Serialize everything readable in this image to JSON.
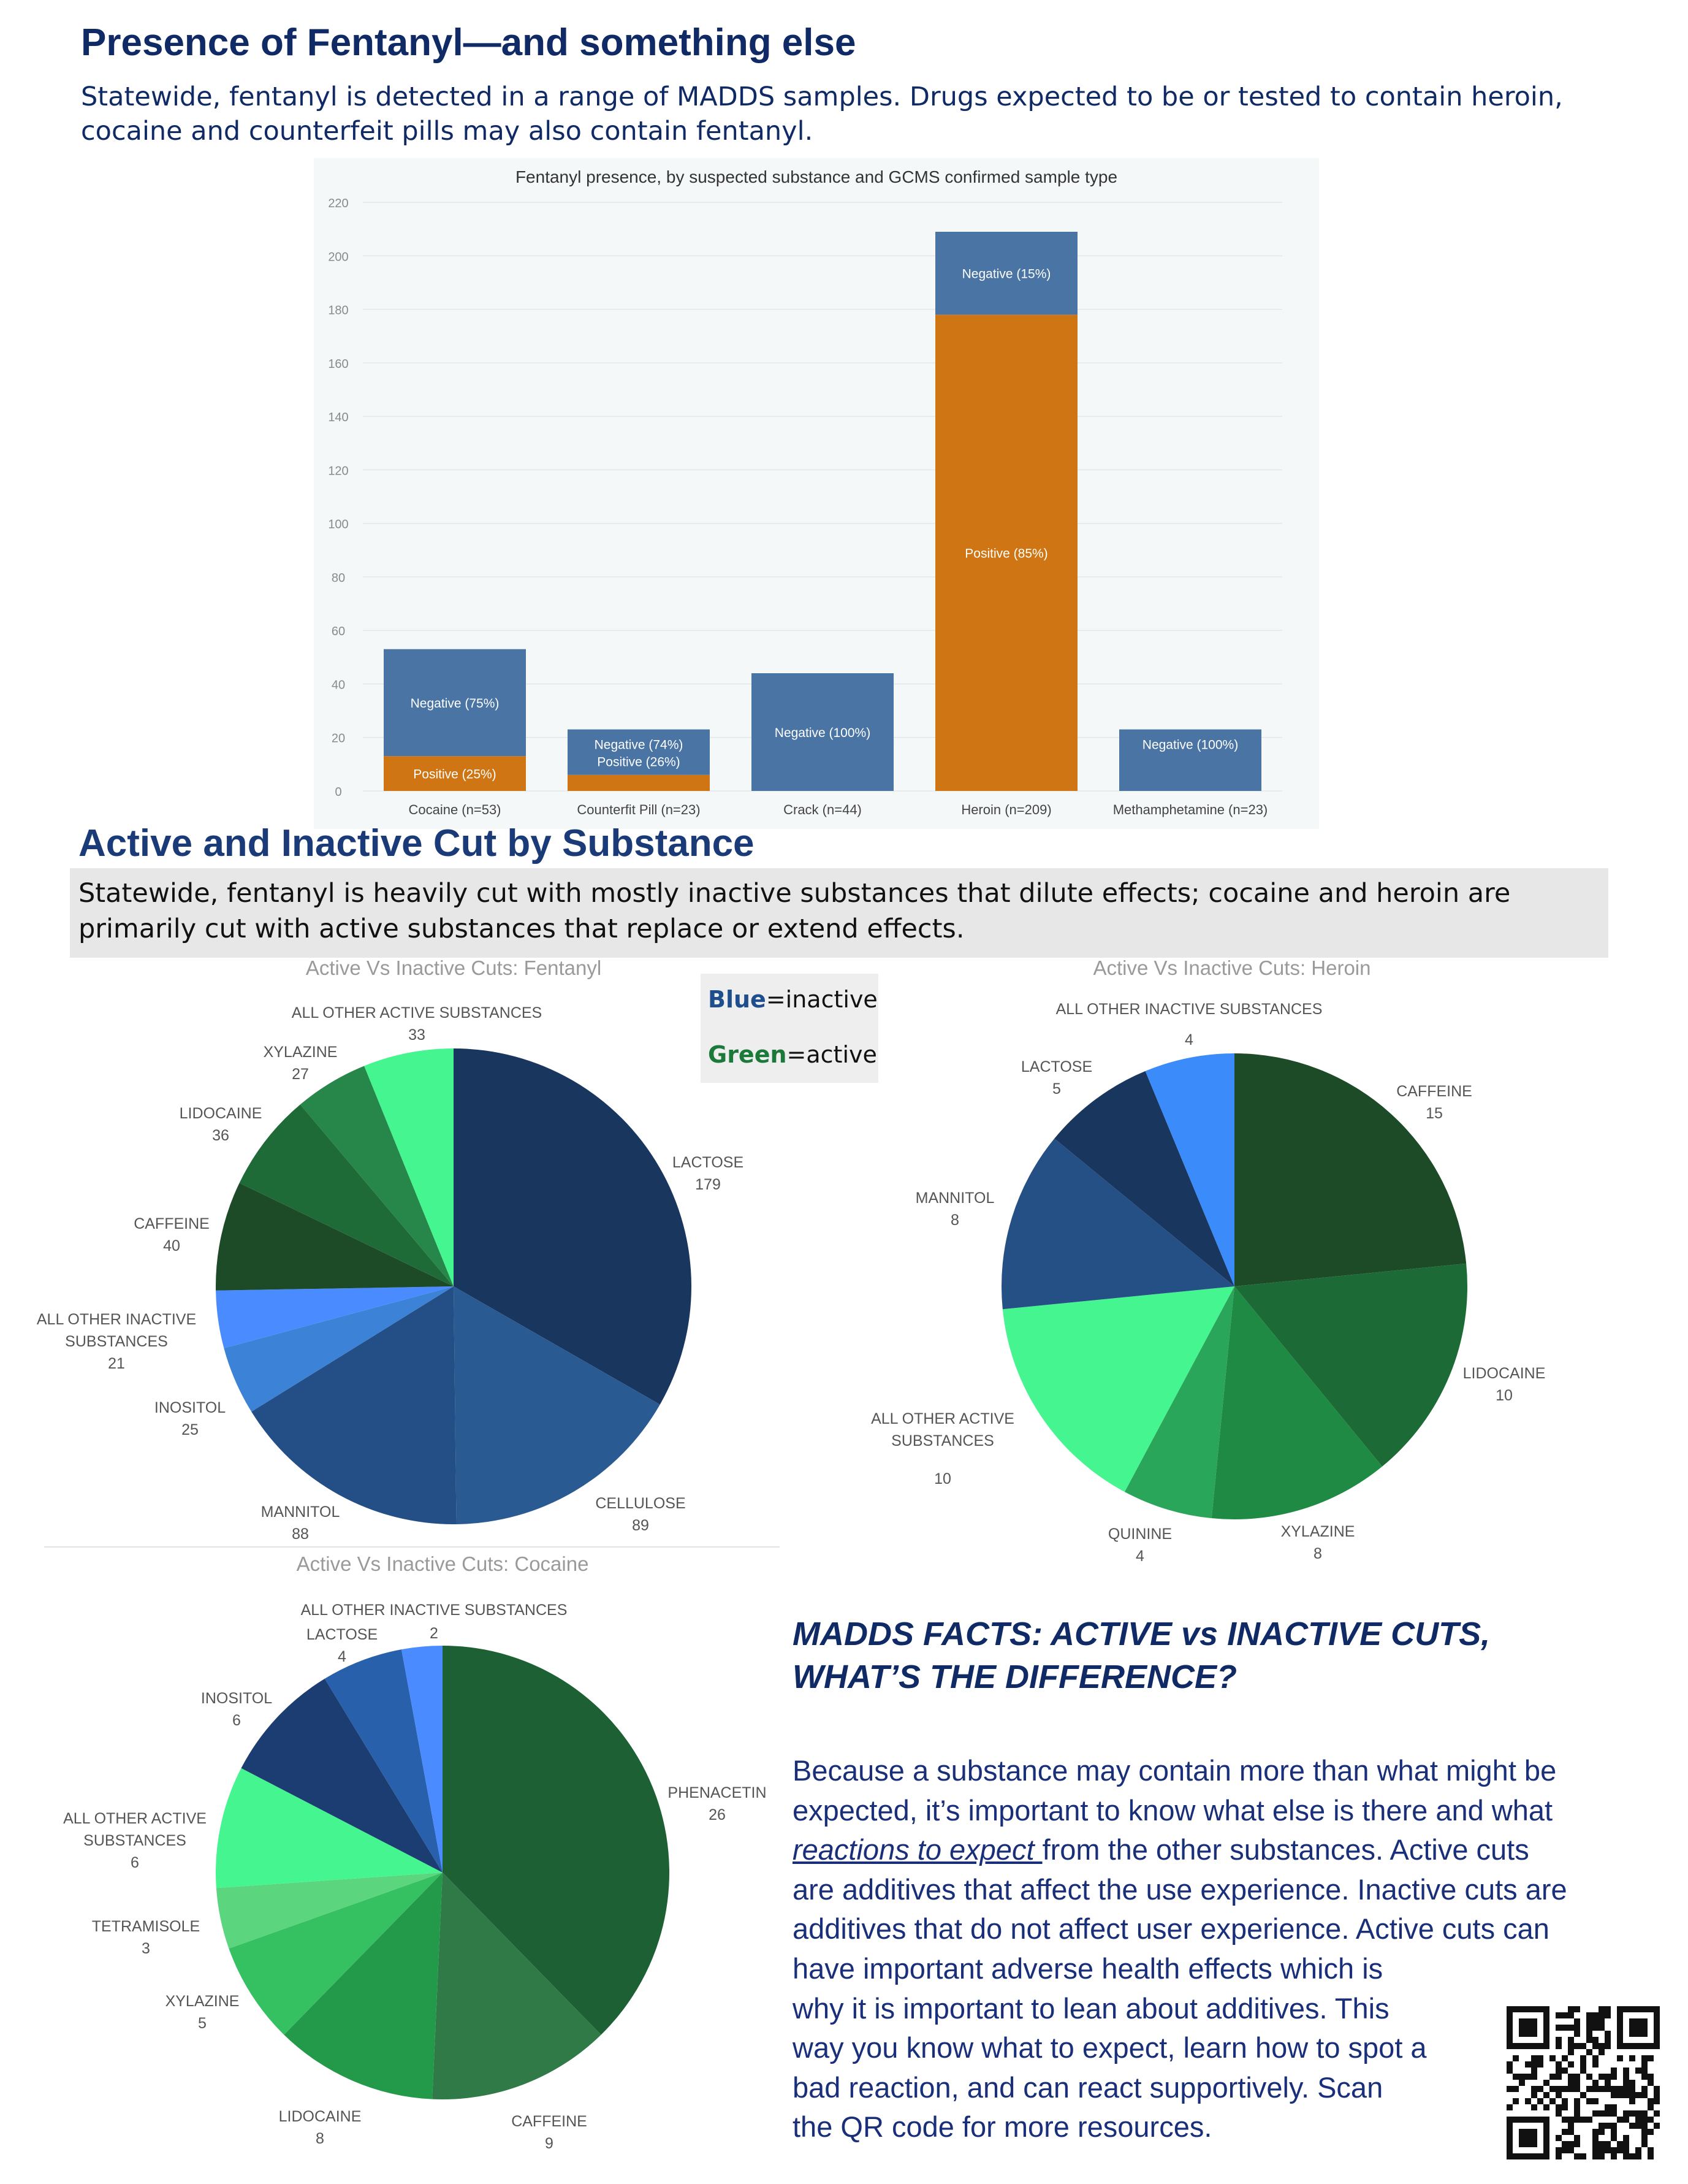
{
  "header": {
    "title": "Presence of Fentanyl—and something else",
    "intro": "Statewide, fentanyl is detected in a range of MADDS samples. Drugs expected to be or tested to contain heroin, cocaine and counterfeit pills may also contain fentanyl."
  },
  "section2": {
    "title": "Active and Inactive Cut by Substance",
    "intro": "Statewide, fentanyl is heavily cut with mostly inactive substances that dilute effects; cocaine and heroin are primarily cut with active  substances that replace or extend effects."
  },
  "legend": {
    "blue_word": "Blue",
    "blue_rest": "=inactive",
    "green_word": "Green",
    "green_rest": "=active",
    "blue_color": "#1f4e8c",
    "green_color": "#1b7a3a"
  },
  "chart_data": [
    {
      "type": "bar",
      "stacked": true,
      "title": "Fentanyl presence, by suspected substance and GCMS confirmed sample type",
      "categories": [
        "Cocaine (n=53)",
        "Counterfit Pill (n=23)",
        "Crack (n=44)",
        "Heroin (n=209)",
        "Methamphetamine (n=23)"
      ],
      "ylim": [
        0,
        220
      ],
      "yticks": [
        0,
        20,
        40,
        60,
        80,
        100,
        120,
        140,
        160,
        180,
        200,
        220
      ],
      "grid": true,
      "series": [
        {
          "name": "Positive",
          "color": "#d07513",
          "values": [
            13,
            6,
            0,
            178,
            0
          ],
          "labels": [
            "Positive (25%)",
            "Positive (26%)",
            "",
            "Positive (85%)",
            ""
          ]
        },
        {
          "name": "Negative",
          "color": "#4a74a4",
          "values": [
            40,
            17,
            44,
            31,
            23
          ],
          "labels": [
            "Negative (75%)",
            "Negative (74%)",
            "Negative (100%)",
            "Negative (15%)",
            "Negative (100%)"
          ]
        }
      ]
    },
    {
      "type": "pie",
      "title": "Active Vs Inactive Cuts: Fentanyl",
      "slices": [
        {
          "label": "LACTOSE",
          "value": 179,
          "color": "#19365f"
        },
        {
          "label": "CELLULOSE",
          "value": 89,
          "color": "#2a5a92"
        },
        {
          "label": "MANNITOL",
          "value": 88,
          "color": "#234f86"
        },
        {
          "label": "INOSITOL",
          "value": 25,
          "color": "#3c82d6"
        },
        {
          "label": "ALL OTHER INACTIVE SUBSTANCES",
          "value": 21,
          "color": "#4a8cff"
        },
        {
          "label": "CAFFEINE",
          "value": 40,
          "color": "#1d4a27"
        },
        {
          "label": "LIDOCAINE",
          "value": 36,
          "color": "#1f6b37"
        },
        {
          "label": "XYLAZINE",
          "value": 27,
          "color": "#27874a"
        },
        {
          "label": "ALL OTHER ACTIVE SUBSTANCES",
          "value": 33,
          "color": "#45f590"
        }
      ]
    },
    {
      "type": "pie",
      "title": "Active Vs Inactive Cuts: Heroin",
      "slices": [
        {
          "label": "CAFFEINE",
          "value": 15,
          "color": "#1d4a27"
        },
        {
          "label": "LIDOCAINE",
          "value": 10,
          "color": "#1c6a35"
        },
        {
          "label": "XYLAZINE",
          "value": 8,
          "color": "#1f8a43"
        },
        {
          "label": "QUININE",
          "value": 4,
          "color": "#2aa65a"
        },
        {
          "label": "ALL OTHER ACTIVE SUBSTANCES",
          "value": 10,
          "color": "#45f590"
        },
        {
          "label": "MANNITOL",
          "value": 8,
          "color": "#255086"
        },
        {
          "label": "LACTOSE",
          "value": 5,
          "color": "#19365f"
        },
        {
          "label": "ALL OTHER INACTIVE SUBSTANCES",
          "value": 4,
          "color": "#3b8bfb"
        }
      ]
    },
    {
      "type": "pie",
      "title": "Active Vs Inactive Cuts: Cocaine",
      "slices": [
        {
          "label": "PHENACETIN",
          "value": 26,
          "color": "#1d6033"
        },
        {
          "label": "CAFFEINE",
          "value": 9,
          "color": "#2f7a46"
        },
        {
          "label": "LIDOCAINE",
          "value": 8,
          "color": "#239a4a"
        },
        {
          "label": "XYLAZINE",
          "value": 5,
          "color": "#35c062"
        },
        {
          "label": "TETRAMISOLE",
          "value": 3,
          "color": "#5bd67e"
        },
        {
          "label": "ALL OTHER ACTIVE SUBSTANCES",
          "value": 6,
          "color": "#45f590"
        },
        {
          "label": "INOSITOL",
          "value": 6,
          "color": "#1c3d72"
        },
        {
          "label": "LACTOSE",
          "value": 4,
          "color": "#2860ab"
        },
        {
          "label": "ALL OTHER INACTIVE SUBSTANCES",
          "value": 2,
          "color": "#4a8cff"
        }
      ]
    }
  ],
  "facts": {
    "title_line1": "MADDS FACTS:  ACTIVE vs INACTIVE CUTS,",
    "title_line2": "WHAT’S THE DIFFERENCE?",
    "line1": "Because a substance may contain more than what might be",
    "line2": "expected, it’s important to know what else is there and what",
    "line3_link": "reactions to expect ",
    "line3_rest": "from the other substances.  Active cuts",
    "line4": "are additives that affect the use experience. Inactive cuts are",
    "line5": "additives that do not affect user experience. Active cuts can",
    "line6": "have important adverse health effects which is",
    "line7": "why it is important to lean about additives. This",
    "line8": "way you know what to expect, learn how to spot a",
    "line9": "bad    reaction, and can react supportively. Scan",
    "line10": "the QR code for more resources."
  }
}
